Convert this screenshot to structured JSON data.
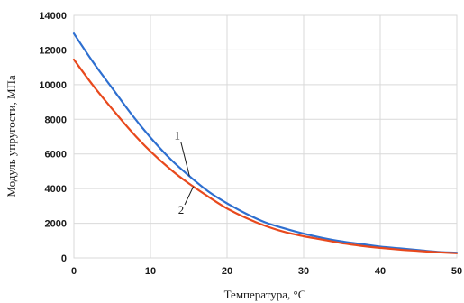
{
  "chart_data": {
    "type": "line",
    "xlabel": "Температура, °C",
    "ylabel": "Модуль упругости, МПа",
    "xlim": [
      0,
      50
    ],
    "ylim": [
      0,
      14000
    ],
    "x_ticks": [
      "0",
      "10",
      "20",
      "30",
      "40",
      "50"
    ],
    "y_ticks": [
      "0",
      "2000",
      "4000",
      "6000",
      "8000",
      "10000",
      "12000",
      "14000"
    ],
    "grid": true,
    "series": [
      {
        "name": "1",
        "color": "#2e6fd0",
        "x": [
          0,
          2.5,
          5,
          7.5,
          10,
          12.5,
          15,
          17.5,
          20,
          22.5,
          25,
          27.5,
          30,
          32.5,
          35,
          37.5,
          40,
          42.5,
          45,
          47.5,
          50
        ],
        "y": [
          12950,
          11300,
          9800,
          8300,
          6950,
          5750,
          4750,
          3850,
          3150,
          2550,
          2050,
          1700,
          1400,
          1150,
          950,
          800,
          650,
          550,
          450,
          350,
          300
        ]
      },
      {
        "name": "2",
        "color": "#e8491d",
        "x": [
          0,
          2.5,
          5,
          7.5,
          10,
          12.5,
          15,
          17.5,
          20,
          22.5,
          25,
          27.5,
          30,
          32.5,
          35,
          37.5,
          40,
          42.5,
          45,
          47.5,
          50
        ],
        "y": [
          11450,
          9950,
          8600,
          7300,
          6150,
          5150,
          4300,
          3550,
          2850,
          2300,
          1850,
          1500,
          1250,
          1050,
          850,
          700,
          580,
          480,
          400,
          330,
          270
        ]
      }
    ],
    "annotations": [
      {
        "text": "1",
        "x": 13.5,
        "y": 6850,
        "points_to_series": "1"
      },
      {
        "text": "2",
        "x": 14.0,
        "y": 2550,
        "points_to_series": "2"
      }
    ]
  }
}
